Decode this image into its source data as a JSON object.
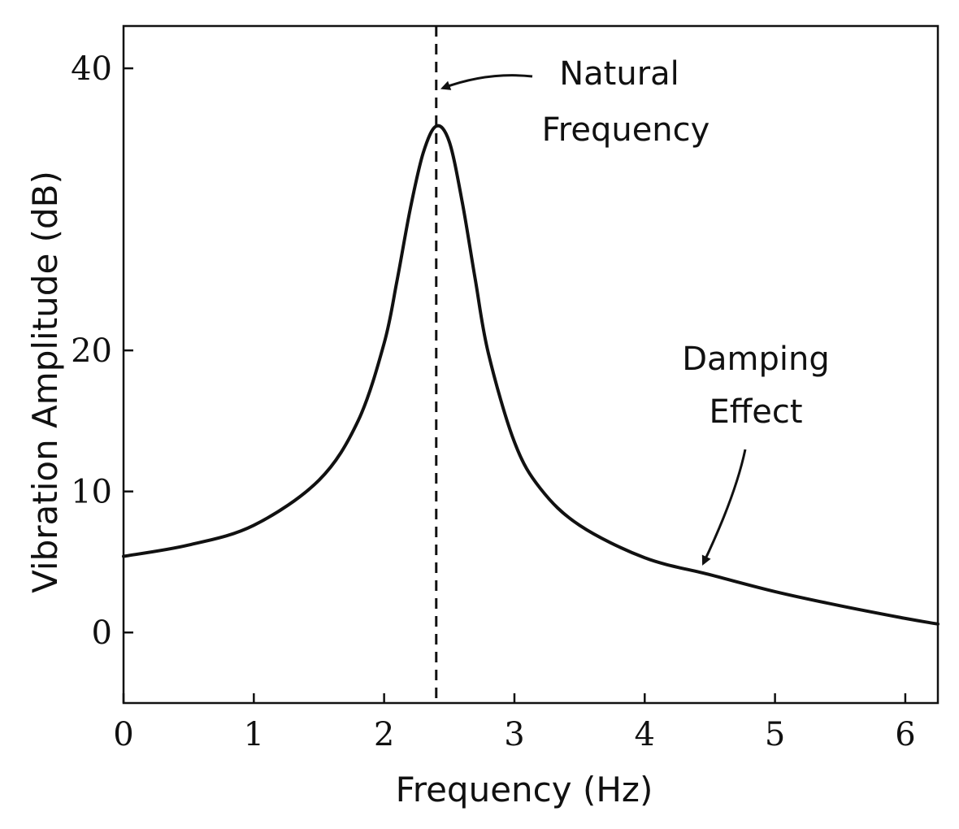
{
  "chart_data": {
    "type": "line",
    "title": "",
    "xlabel": "Frequency (Hz)",
    "ylabel": "Vibration Amplitude (dB)",
    "xlim": [
      0,
      6.25
    ],
    "ylim": [
      -5,
      43
    ],
    "xticks": [
      0,
      1,
      2,
      3,
      4,
      5,
      6
    ],
    "yticks": [
      0,
      10,
      20,
      40
    ],
    "grid": false,
    "series": [
      {
        "name": "Vibration Amplitude",
        "x": [
          0,
          0.5,
          1.0,
          1.5,
          1.8,
          2.0,
          2.1,
          2.2,
          2.3,
          2.4,
          2.5,
          2.6,
          2.7,
          2.8,
          3.0,
          3.2,
          3.5,
          4.0,
          4.5,
          5.0,
          5.5,
          6.0,
          6.25
        ],
        "y": [
          5.4,
          6.2,
          7.6,
          10.8,
          15.0,
          20.5,
          25.0,
          30.0,
          34.0,
          35.9,
          34.8,
          30.5,
          25.0,
          19.8,
          13.5,
          10.2,
          7.6,
          5.3,
          4.1,
          2.9,
          1.9,
          1.0,
          0.6
        ]
      }
    ],
    "reference_line": {
      "x": 2.4,
      "style": "dashed"
    },
    "annotations": [
      {
        "lines": [
          "Natural",
          "Frequency"
        ],
        "points_to": {
          "x": 2.45,
          "y": 38.6
        }
      },
      {
        "lines": [
          "Damping",
          "Effect"
        ],
        "points_to": {
          "x": 4.45,
          "y": 4.9
        }
      }
    ]
  },
  "colors": {
    "line": "#111111",
    "axis": "#111111",
    "background": "#ffffff"
  }
}
